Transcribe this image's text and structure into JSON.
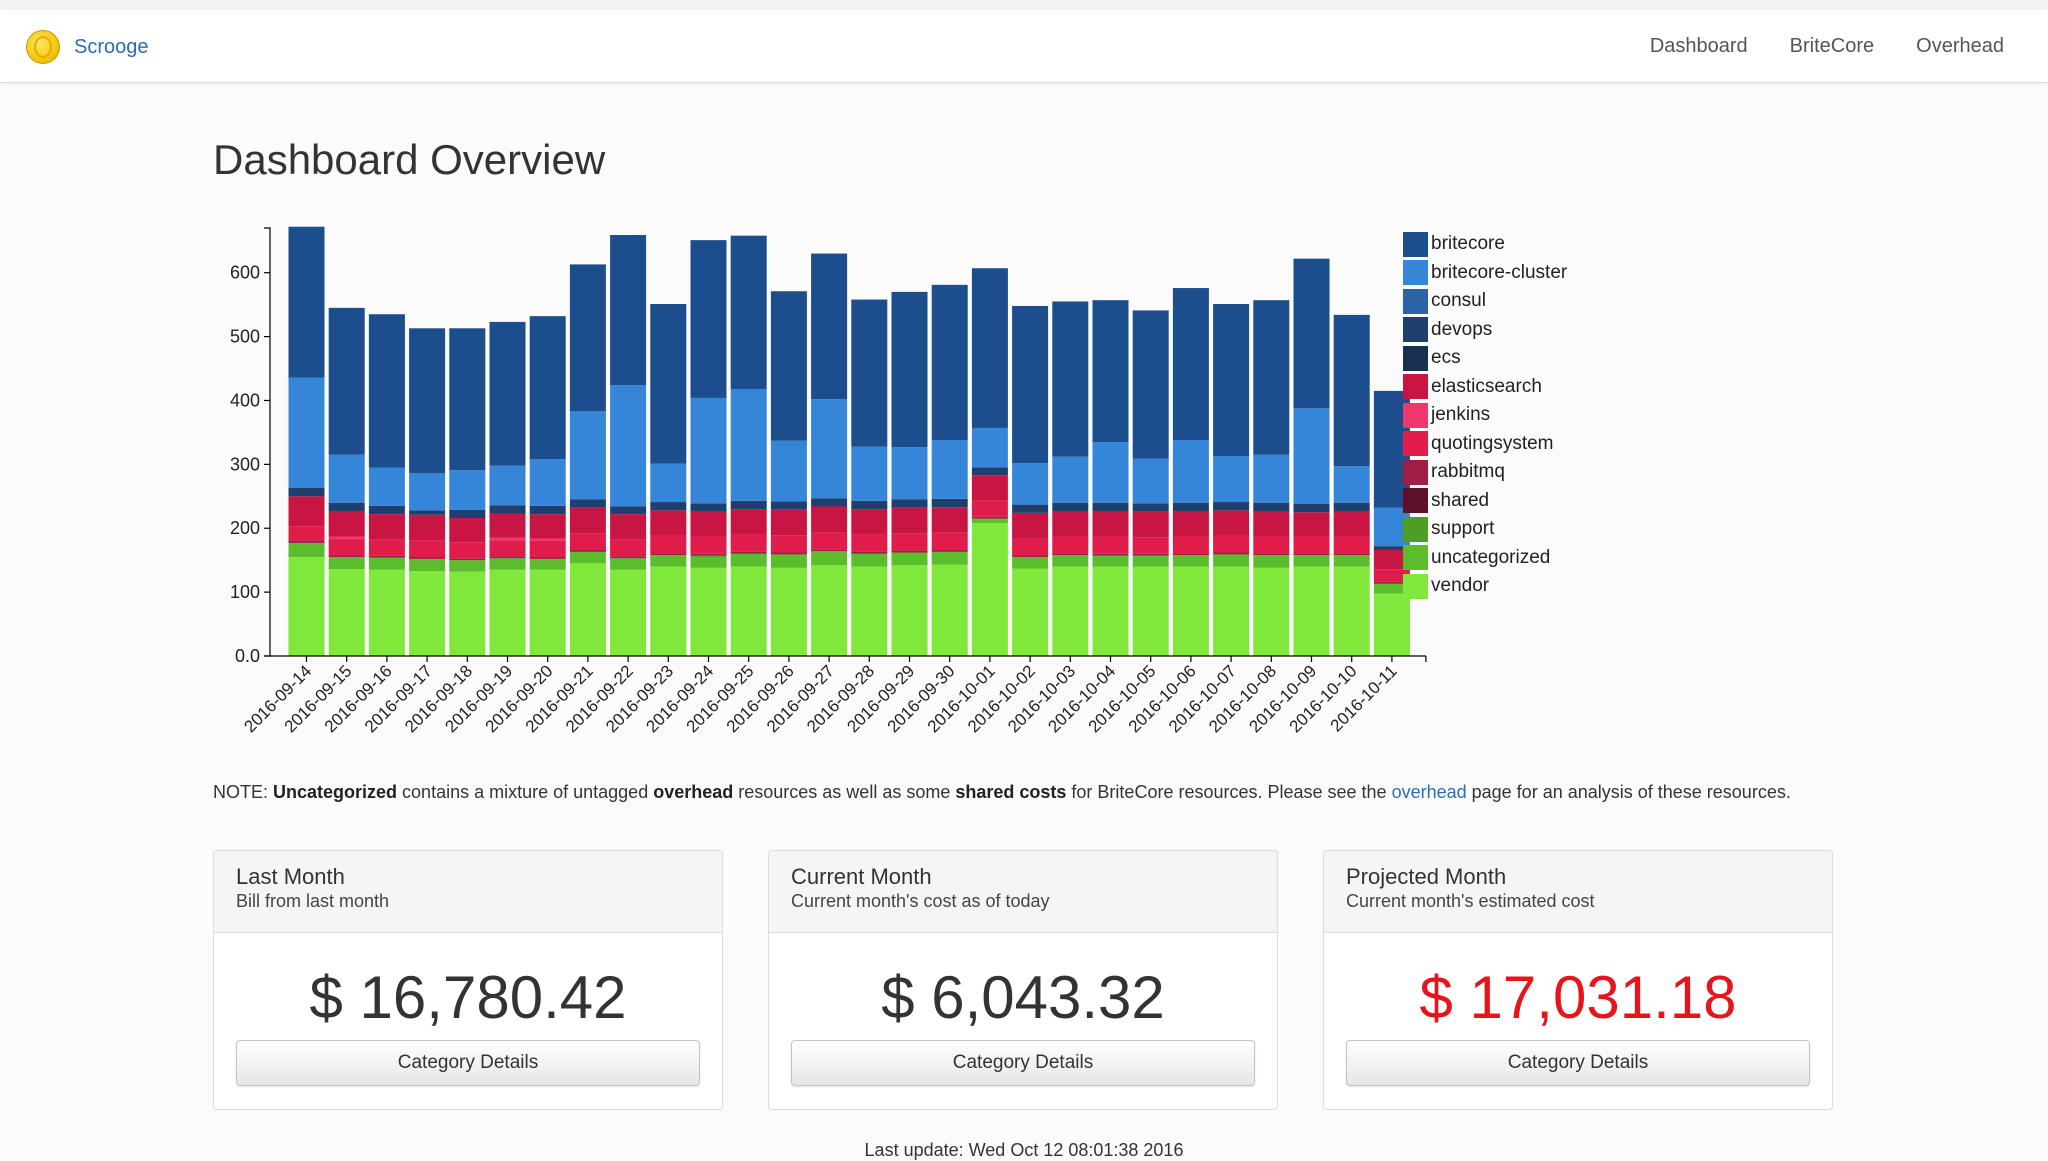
{
  "nav": {
    "brand": "Scrooge",
    "links": [
      "Dashboard",
      "BriteCore",
      "Overhead"
    ]
  },
  "page": {
    "title": "Dashboard Overview"
  },
  "chart_data": {
    "type": "bar",
    "stacked": true,
    "title": "",
    "xlabel": "",
    "ylabel": "",
    "ylim": [
      0,
      670
    ],
    "yticks": [
      0,
      100,
      200,
      300,
      400,
      500,
      600
    ],
    "ytick_labels": [
      "0.0",
      "100",
      "200",
      "300",
      "400",
      "500",
      "600"
    ],
    "legend_position": "right",
    "categories": [
      "2016-09-14",
      "2016-09-15",
      "2016-09-16",
      "2016-09-17",
      "2016-09-18",
      "2016-09-19",
      "2016-09-20",
      "2016-09-21",
      "2016-09-22",
      "2016-09-23",
      "2016-09-24",
      "2016-09-25",
      "2016-09-26",
      "2016-09-27",
      "2016-09-28",
      "2016-09-29",
      "2016-09-30",
      "2016-10-01",
      "2016-10-02",
      "2016-10-03",
      "2016-10-04",
      "2016-10-05",
      "2016-10-06",
      "2016-10-07",
      "2016-10-08",
      "2016-10-09",
      "2016-10-10",
      "2016-10-11"
    ],
    "series": [
      {
        "name": "vendor",
        "color": "#80e83a",
        "values": [
          155,
          136,
          135,
          133,
          132,
          135,
          135,
          145,
          135,
          140,
          138,
          140,
          138,
          142,
          140,
          142,
          143,
          208,
          137,
          140,
          140,
          140,
          140,
          140,
          138,
          140,
          140,
          98
        ]
      },
      {
        "name": "uncategorized",
        "color": "#5cbd2c",
        "values": [
          22,
          19,
          19,
          19,
          18,
          18,
          17,
          18,
          18,
          18,
          17,
          20,
          21,
          22,
          20,
          20,
          20,
          7,
          18,
          18,
          17,
          17,
          18,
          19,
          20,
          18,
          18,
          15
        ]
      },
      {
        "name": "support",
        "color": "#4f9e24",
        "values": [
          0,
          0,
          0,
          0,
          0,
          0,
          0,
          0,
          0,
          0,
          2,
          0,
          0,
          0,
          0,
          0,
          0,
          0,
          0,
          0,
          0,
          0,
          0,
          0,
          0,
          0,
          0,
          0
        ]
      },
      {
        "name": "shared",
        "color": "#5c1128",
        "values": [
          0,
          0,
          0,
          0,
          0,
          0,
          0,
          0,
          0,
          0,
          0,
          0,
          0,
          0,
          0,
          0,
          0,
          0,
          0,
          0,
          0,
          0,
          0,
          0,
          0,
          0,
          0,
          0
        ]
      },
      {
        "name": "rabbitmq",
        "color": "#a01e45",
        "values": [
          4,
          3,
          3,
          3,
          3,
          3,
          3,
          3,
          3,
          3,
          3,
          3,
          3,
          3,
          3,
          3,
          3,
          3,
          3,
          3,
          3,
          3,
          3,
          3,
          3,
          3,
          3,
          3
        ]
      },
      {
        "name": "quotingsystem",
        "color": "#e01c4a",
        "values": [
          22,
          25,
          25,
          26,
          25,
          25,
          25,
          26,
          26,
          27,
          27,
          27,
          27,
          27,
          27,
          27,
          27,
          25,
          26,
          26,
          27,
          26,
          26,
          26,
          26,
          26,
          26,
          20
        ]
      },
      {
        "name": "jenkins",
        "color": "#f0366a",
        "values": [
          0,
          4,
          0,
          0,
          0,
          4,
          4,
          0,
          0,
          0,
          0,
          0,
          0,
          0,
          0,
          0,
          0,
          0,
          0,
          0,
          0,
          0,
          0,
          0,
          0,
          0,
          0,
          0
        ]
      },
      {
        "name": "elasticsearch",
        "color": "#c91543",
        "values": [
          47,
          40,
          40,
          40,
          38,
          38,
          38,
          40,
          40,
          40,
          40,
          40,
          40,
          40,
          40,
          40,
          40,
          40,
          40,
          40,
          40,
          40,
          40,
          40,
          40,
          38,
          40,
          30
        ]
      },
      {
        "name": "ecs",
        "color": "#18304f",
        "values": [
          0,
          0,
          0,
          0,
          0,
          0,
          0,
          0,
          0,
          0,
          0,
          0,
          0,
          0,
          0,
          0,
          0,
          0,
          0,
          0,
          0,
          0,
          0,
          0,
          0,
          0,
          0,
          0
        ]
      },
      {
        "name": "devops",
        "color": "#1f406e",
        "values": [
          13,
          13,
          13,
          7,
          13,
          13,
          13,
          13,
          12,
          13,
          12,
          13,
          13,
          13,
          13,
          13,
          13,
          12,
          13,
          13,
          13,
          13,
          13,
          13,
          13,
          13,
          13,
          6
        ]
      },
      {
        "name": "consul",
        "color": "#2c62a6",
        "values": [
          0,
          0,
          0,
          0,
          0,
          0,
          0,
          0,
          0,
          0,
          0,
          0,
          0,
          0,
          0,
          0,
          0,
          0,
          0,
          0,
          0,
          0,
          0,
          0,
          0,
          0,
          0,
          0
        ]
      },
      {
        "name": "britecore-cluster",
        "color": "#3585d9",
        "values": [
          173,
          75,
          60,
          58,
          62,
          62,
          73,
          138,
          190,
          60,
          165,
          175,
          95,
          155,
          85,
          82,
          92,
          62,
          65,
          72,
          95,
          70,
          98,
          72,
          75,
          150,
          57,
          60
        ]
      },
      {
        "name": "britecore",
        "color": "#1c4d8c",
        "values": [
          236,
          230,
          240,
          227,
          222,
          225,
          224,
          230,
          235,
          250,
          247,
          240,
          234,
          228,
          230,
          243,
          243,
          250,
          246,
          243,
          222,
          232,
          238,
          238,
          242,
          234,
          237,
          183
        ]
      }
    ]
  },
  "legend": [
    "britecore",
    "britecore-cluster",
    "consul",
    "devops",
    "ecs",
    "elasticsearch",
    "jenkins",
    "quotingsystem",
    "rabbitmq",
    "shared",
    "support",
    "uncategorized",
    "vendor"
  ],
  "legend_colors": [
    "#1c4d8c",
    "#3585d9",
    "#2c62a6",
    "#1f406e",
    "#18304f",
    "#c91543",
    "#f0366a",
    "#e01c4a",
    "#a01e45",
    "#5c1128",
    "#4f9e24",
    "#5cbd2c",
    "#80e83a"
  ],
  "note": {
    "p1": "NOTE: ",
    "b1": "Uncategorized",
    "p2": " contains a mixture of untagged ",
    "b2": "overhead",
    "p3": " resources as well as some ",
    "b3": "shared costs",
    "p4": " for BriteCore resources. Please see the ",
    "link": "overhead",
    "p5": " page for an analysis of these resources."
  },
  "cards": [
    {
      "title": "Last Month",
      "subtitle": "Bill from last month",
      "value": "$ 16,780.42",
      "button": "Category Details"
    },
    {
      "title": "Current Month",
      "subtitle": "Current month's cost as of today",
      "value": "$ 6,043.32",
      "button": "Category Details"
    },
    {
      "title": "Projected Month",
      "subtitle": "Current month's estimated cost",
      "value": "$ 17,031.18",
      "button": "Category Details",
      "value_color": "#e8141c"
    }
  ],
  "footer": {
    "text": "Last update: Wed Oct 12 08:01:38 2016"
  }
}
